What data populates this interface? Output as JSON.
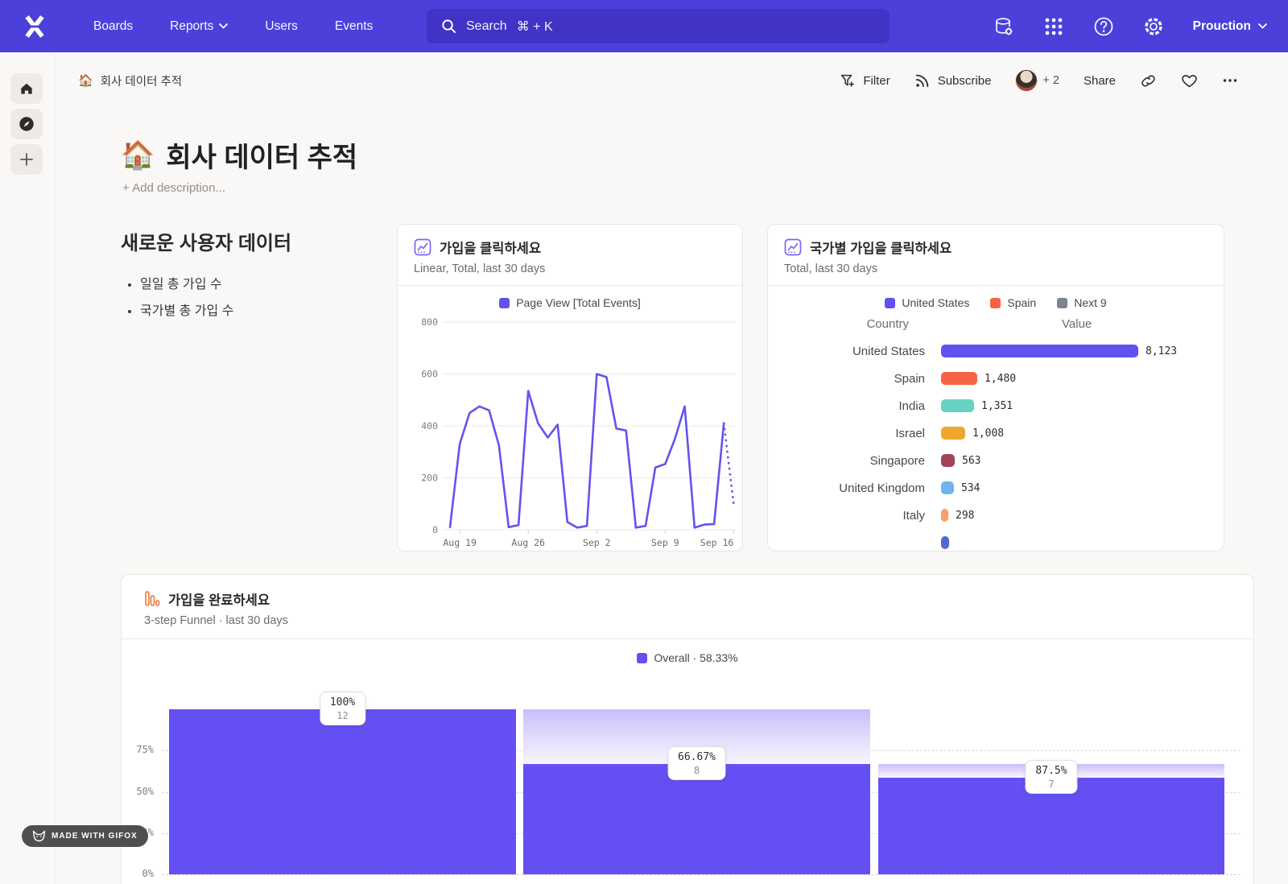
{
  "topnav": {
    "brand": "Mixpanel",
    "items": [
      {
        "label": "Boards"
      },
      {
        "label": "Reports"
      },
      {
        "label": "Users"
      },
      {
        "label": "Events"
      }
    ],
    "search": {
      "label": "Search",
      "shortcut": "⌘ + K"
    },
    "project": {
      "name": "Prouction"
    }
  },
  "breadcrumb": {
    "emoji": "🏠",
    "label": "회사 데이터 추적"
  },
  "toolbar": {
    "filter": "Filter",
    "subscribe": "Subscribe",
    "collaborators": "+ 2",
    "share": "Share"
  },
  "page": {
    "emoji": "🏠",
    "title": "회사 데이터 추적",
    "description": "+ Add description..."
  },
  "text_card": {
    "heading": "새로운 사용자 데이터",
    "bullets": [
      "일일 총 가입 수",
      "국가별 총 가입 수"
    ]
  },
  "footer": {
    "badge": "MADE WITH GIFOX"
  },
  "chart_data": [
    {
      "type": "line",
      "title": "가입을 클릭하세요",
      "subtitle": "Linear, Total, last 30 days",
      "legend": [
        "Page View [Total Events]"
      ],
      "line_color": "#6154ee",
      "ylabel": "",
      "xlabel": "",
      "ylim": [
        0,
        800
      ],
      "y_ticks": [
        0,
        200,
        400,
        600,
        800
      ],
      "grid": "horizontal",
      "x": [
        "Aug 18",
        "Aug 19",
        "Aug 20",
        "Aug 21",
        "Aug 22",
        "Aug 23",
        "Aug 24",
        "Aug 25",
        "Aug 26",
        "Aug 27",
        "Aug 28",
        "Aug 29",
        "Aug 30",
        "Aug 31",
        "Sep 1",
        "Sep 2",
        "Sep 3",
        "Sep 4",
        "Sep 5",
        "Sep 6",
        "Sep 7",
        "Sep 8",
        "Sep 9",
        "Sep 10",
        "Sep 11",
        "Sep 12",
        "Sep 13",
        "Sep 14",
        "Sep 15"
      ],
      "values": [
        10,
        330,
        450,
        475,
        460,
        325,
        10,
        18,
        535,
        410,
        355,
        405,
        30,
        8,
        15,
        600,
        588,
        390,
        382,
        8,
        15,
        240,
        253,
        350,
        475,
        8,
        20,
        22,
        410
      ],
      "incomplete_tail": {
        "x": "Sep 16",
        "value": 100,
        "style": "dotted"
      },
      "x_tick_labels": [
        "Aug 19",
        "Aug 26",
        "Sep 2",
        "Sep 9",
        "Sep 16"
      ],
      "x_tick_indices": [
        1,
        8,
        15,
        22,
        29
      ]
    },
    {
      "type": "bar",
      "title": "국가별 가입을 클릭하세요",
      "subtitle": "Total, last 30 days",
      "legend": [
        {
          "label": "United States",
          "color": "#6151ef"
        },
        {
          "label": "Spain",
          "color": "#f96243"
        },
        {
          "label": "Next 9",
          "color": "#7d8492"
        }
      ],
      "columns": [
        "Country",
        "Value"
      ],
      "max_value": 8123,
      "rows": [
        {
          "country": "United States",
          "value": 8123,
          "display": "8,123",
          "color": "#6151ef"
        },
        {
          "country": "Spain",
          "value": 1480,
          "display": "1,480",
          "color": "#f96243"
        },
        {
          "country": "India",
          "value": 1351,
          "display": "1,351",
          "color": "#66d3c2"
        },
        {
          "country": "Israel",
          "value": 1008,
          "display": "1,008",
          "color": "#f0a62c"
        },
        {
          "country": "Singapore",
          "value": 563,
          "display": "563",
          "color": "#a34459"
        },
        {
          "country": "United Kingdom",
          "value": 534,
          "display": "534",
          "color": "#6fb3f0"
        },
        {
          "country": "Italy",
          "value": 298,
          "display": "298",
          "color": "#f9a066"
        },
        {
          "country": "",
          "value": null,
          "display": "",
          "color": "#4f68d4",
          "partial": true
        }
      ]
    },
    {
      "type": "funnel",
      "title": "가입을 완료하세요",
      "subtitle": "3-step Funnel · last 30 days",
      "legend": "Overall · 58.33%",
      "legend_color": "#6450f2",
      "bar_color": "#6450f2",
      "y_ticks": [
        "75%",
        "50%",
        "25%",
        "0%"
      ],
      "steps": [
        {
          "pct_label": "100%",
          "count": "12",
          "abs_pct": 100
        },
        {
          "pct_label": "66.67%",
          "count": "8",
          "abs_pct": 66.67,
          "prev_abs_pct": 100
        },
        {
          "pct_label": "87.5%",
          "count": "7",
          "abs_pct": 58.33,
          "prev_abs_pct": 66.67
        }
      ]
    }
  ]
}
